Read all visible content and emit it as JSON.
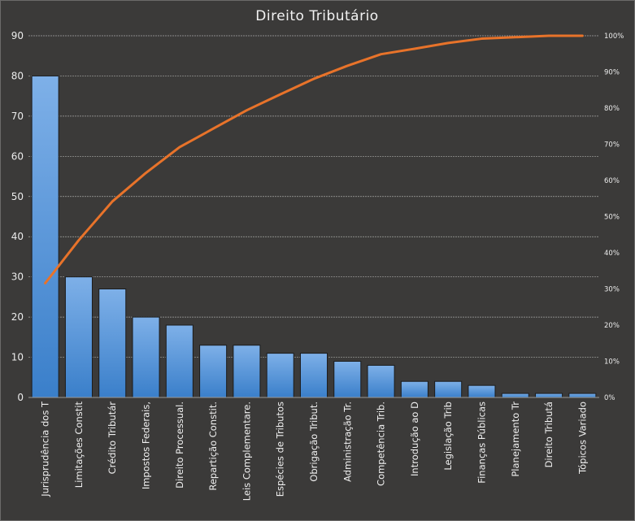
{
  "chart_data": {
    "type": "bar",
    "title": "Direito Tributário",
    "categories": [
      "Jurisprudência dos T",
      "Limitações Constit",
      "Crédito Tributár",
      "Impostos Federais,",
      "Direito Processual.",
      "Repartição Constit.",
      "Leis Complementare.",
      "Espécies de Tributos",
      "Obrigação Tribut.",
      "Administração Tr.",
      "Competência Trib.",
      "Introdução  ao D",
      "Legislação Trib",
      "Finanças Públicas",
      "Planejamento Tr",
      "Direito Tributá",
      "Tópicos Variado"
    ],
    "series": [
      {
        "type": "bar",
        "values": [
          80,
          30,
          27,
          20,
          18,
          13,
          13,
          11,
          11,
          9,
          8,
          4,
          4,
          3,
          1,
          1,
          1
        ]
      },
      {
        "type": "line",
        "axis": "right",
        "values": [
          31.6,
          43.5,
          54.2,
          62.1,
          69.2,
          74.3,
          79.4,
          83.8,
          88.1,
          91.7,
          94.9,
          96.4,
          98.0,
          99.2,
          99.6,
          100.0,
          100.0
        ]
      }
    ],
    "ylim": [
      0,
      90
    ],
    "yticks": [
      0,
      10,
      20,
      30,
      40,
      50,
      60,
      70,
      80,
      90
    ],
    "y2lim": [
      0,
      100
    ],
    "y2ticks": [
      "0%",
      "10%",
      "20%",
      "30%",
      "40%",
      "50%",
      "60%",
      "70%",
      "80%",
      "90%",
      "100%"
    ],
    "grid": true,
    "legend": "none",
    "colors": {
      "bar_top": "#7eb0e8",
      "bar_bottom": "#3a7fca",
      "line": "#e8732a",
      "background": "#3b3a39"
    }
  }
}
